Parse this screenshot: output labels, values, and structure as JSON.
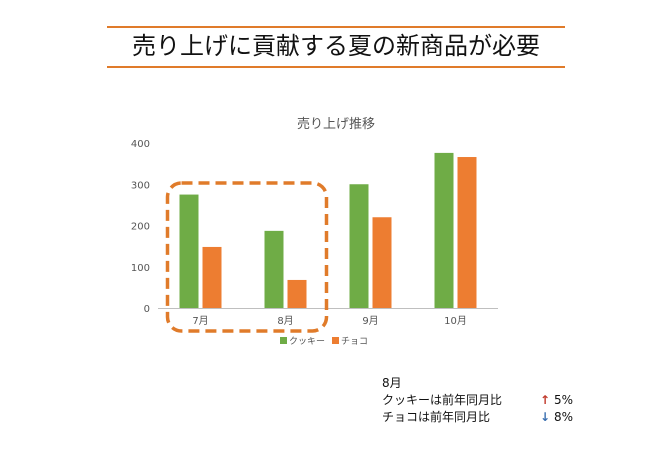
{
  "slide": {
    "title": "売り上げに貢献する夏の新商品が必要"
  },
  "chart_data": {
    "type": "bar",
    "title": "売り上げ推移",
    "categories": [
      "7月",
      "8月",
      "9月",
      "10月"
    ],
    "series": [
      {
        "name": "クッキー",
        "color": "#6fac46",
        "values": [
          275,
          187,
          300,
          376
        ]
      },
      {
        "name": "チョコ",
        "color": "#ed7d31",
        "values": [
          148,
          68,
          220,
          366
        ]
      }
    ],
    "ylim": [
      0,
      400
    ],
    "yticks": [
      0,
      100,
      200,
      300,
      400
    ],
    "grid": false,
    "legend_position": "bottom",
    "highlight": {
      "categories": [
        "7月",
        "8月"
      ],
      "style": "dashed",
      "color": "#e07b2a"
    }
  },
  "note": {
    "heading": "8月",
    "lines": [
      {
        "text": "クッキーは前年同月比",
        "arrow": "↑",
        "direction": "up",
        "value": "5%"
      },
      {
        "text": "チョコは前年同月比",
        "arrow": "↓",
        "direction": "down",
        "value": "8%"
      }
    ]
  }
}
